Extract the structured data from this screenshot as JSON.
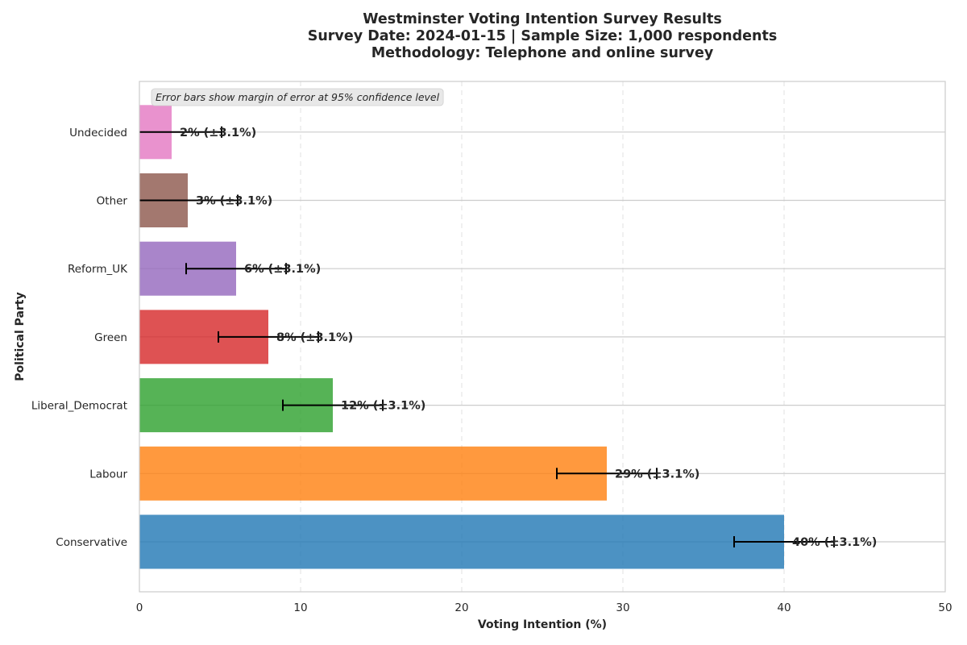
{
  "chart_data": {
    "type": "bar",
    "orientation": "horizontal",
    "title_lines": [
      "Westminster Voting Intention Survey Results",
      "Survey Date: 2024-01-15 | Sample Size: 1,000 respondents",
      "Methodology: Telephone and online survey"
    ],
    "xlabel": "Voting Intention (%)",
    "ylabel": "Political Party",
    "xlim": [
      0,
      50
    ],
    "xticks": [
      "0",
      "10",
      "20",
      "30",
      "40",
      "50"
    ],
    "grid": true,
    "annotation": "Error bars show margin of error at 95% confidence level",
    "categories": [
      "Conservative",
      "Labour",
      "Liberal_Democrat",
      "Green",
      "Reform_UK",
      "Other",
      "Undecided"
    ],
    "values": [
      40,
      29,
      12,
      8,
      6,
      3,
      2
    ],
    "margin_of_error": [
      3.1,
      3.1,
      3.1,
      3.1,
      3.1,
      3.1,
      3.1
    ],
    "data_labels": [
      "40% (±3.1%)",
      "29% (±3.1%)",
      "12% (±3.1%)",
      "8% (±3.1%)",
      "6% (±3.1%)",
      "3% (±3.1%)",
      "2% (±3.1%)"
    ],
    "colors": [
      "#1f77b4",
      "#ff7f0e",
      "#2ca02c",
      "#d62728",
      "#9467bd",
      "#8c564b",
      "#e377c2"
    ]
  }
}
